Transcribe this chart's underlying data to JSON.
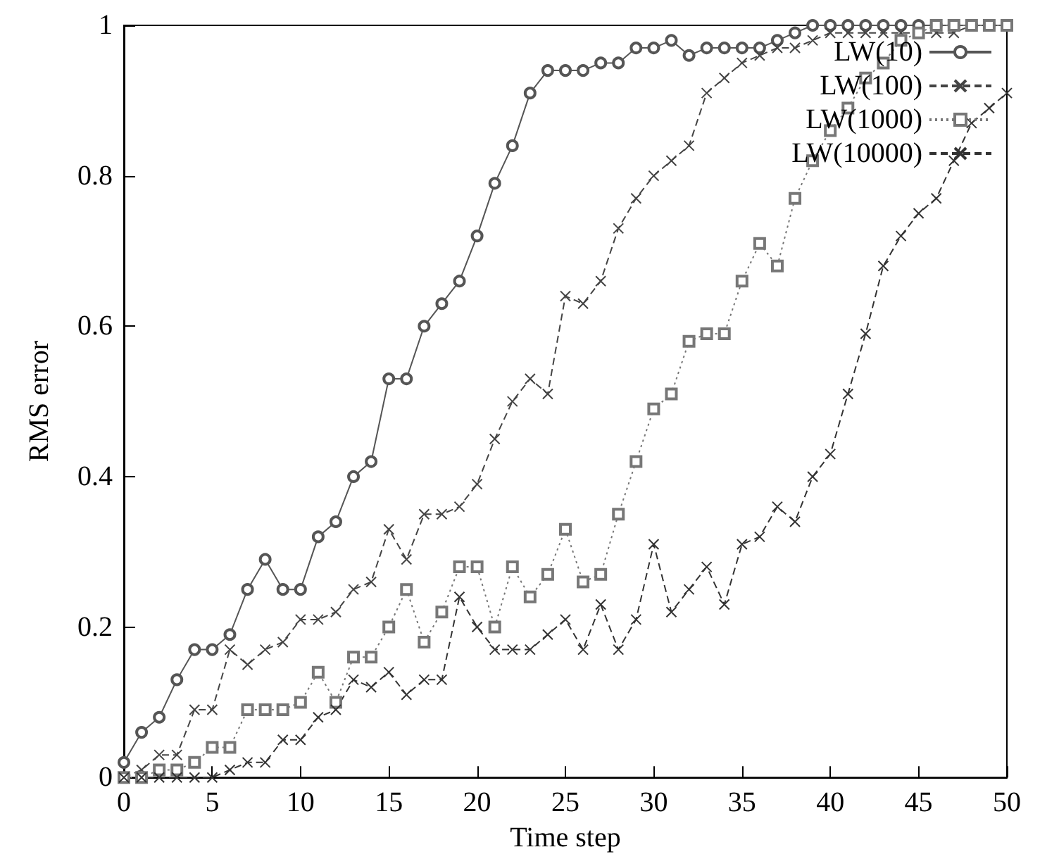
{
  "chart_data": {
    "type": "line",
    "xlabel": "Time step",
    "ylabel": "RMS error",
    "x": [
      0,
      1,
      2,
      3,
      4,
      5,
      6,
      7,
      8,
      9,
      10,
      11,
      12,
      13,
      14,
      15,
      16,
      17,
      18,
      19,
      20,
      21,
      22,
      23,
      24,
      25,
      26,
      27,
      28,
      29,
      30,
      31,
      32,
      33,
      34,
      35,
      36,
      37,
      38,
      39,
      40,
      41,
      42,
      43,
      44,
      45,
      46,
      47,
      48,
      49,
      50
    ],
    "series": [
      {
        "name": "LW(10)",
        "color": "#555555",
        "marker": "circle",
        "line_style": "solid",
        "values": [
          0.02,
          0.06,
          0.08,
          0.13,
          0.17,
          0.17,
          0.19,
          0.25,
          0.29,
          0.25,
          0.25,
          0.32,
          0.34,
          0.4,
          0.42,
          0.53,
          0.53,
          0.6,
          0.63,
          0.66,
          0.72,
          0.79,
          0.84,
          0.91,
          0.94,
          0.94,
          0.94,
          0.95,
          0.95,
          0.97,
          0.97,
          0.98,
          0.96,
          0.97,
          0.97,
          0.97,
          0.97,
          0.98,
          0.99,
          1.0,
          1.0,
          1.0,
          1.0,
          1.0,
          1.0,
          1.0,
          1.0,
          1.0,
          1.0,
          1.0,
          1.0
        ]
      },
      {
        "name": "LW(100)",
        "color": "#444444",
        "marker": "cross",
        "line_style": "dashed",
        "values": [
          0.0,
          0.01,
          0.03,
          0.03,
          0.09,
          0.09,
          0.17,
          0.15,
          0.17,
          0.18,
          0.21,
          0.21,
          0.22,
          0.25,
          0.26,
          0.33,
          0.29,
          0.35,
          0.35,
          0.36,
          0.39,
          0.45,
          0.5,
          0.53,
          0.51,
          0.64,
          0.63,
          0.66,
          0.73,
          0.77,
          0.8,
          0.82,
          0.84,
          0.91,
          0.93,
          0.95,
          0.96,
          0.97,
          0.97,
          0.98,
          0.99,
          0.99,
          0.99,
          0.99,
          0.99,
          0.99,
          0.99,
          0.99,
          1.0,
          1.0,
          1.0
        ]
      },
      {
        "name": "LW(1000)",
        "color": "#777777",
        "marker": "square",
        "line_style": "dotted",
        "values": [
          0.0,
          0.0,
          0.01,
          0.01,
          0.02,
          0.04,
          0.04,
          0.09,
          0.09,
          0.09,
          0.1,
          0.14,
          0.1,
          0.16,
          0.16,
          0.2,
          0.25,
          0.18,
          0.22,
          0.28,
          0.28,
          0.2,
          0.28,
          0.24,
          0.27,
          0.33,
          0.26,
          0.27,
          0.35,
          0.42,
          0.49,
          0.51,
          0.58,
          0.59,
          0.59,
          0.66,
          0.71,
          0.68,
          0.77,
          0.82,
          0.86,
          0.89,
          0.93,
          0.95,
          0.98,
          0.99,
          1.0,
          1.0,
          1.0,
          1.0,
          1.0
        ]
      },
      {
        "name": "LW(10000)",
        "color": "#333333",
        "marker": "cross",
        "line_style": "dashed",
        "values": [
          0.0,
          0.0,
          0.0,
          0.0,
          0.0,
          0.0,
          0.01,
          0.02,
          0.02,
          0.05,
          0.05,
          0.08,
          0.09,
          0.13,
          0.12,
          0.14,
          0.11,
          0.13,
          0.13,
          0.24,
          0.2,
          0.17,
          0.17,
          0.17,
          0.19,
          0.21,
          0.17,
          0.23,
          0.17,
          0.21,
          0.31,
          0.22,
          0.25,
          0.28,
          0.23,
          0.31,
          0.32,
          0.36,
          0.34,
          0.4,
          0.43,
          0.51,
          0.59,
          0.68,
          0.72,
          0.75,
          0.77,
          0.82,
          0.87,
          0.89,
          0.91
        ]
      }
    ],
    "xlim": [
      0,
      50
    ],
    "xticks": [
      0,
      5,
      10,
      15,
      20,
      25,
      30,
      35,
      40,
      45,
      50
    ],
    "ylim": [
      0,
      1
    ],
    "yticks": [
      0,
      0.2,
      0.4,
      0.6,
      0.8,
      1
    ],
    "grid": false,
    "legend": "top right"
  }
}
